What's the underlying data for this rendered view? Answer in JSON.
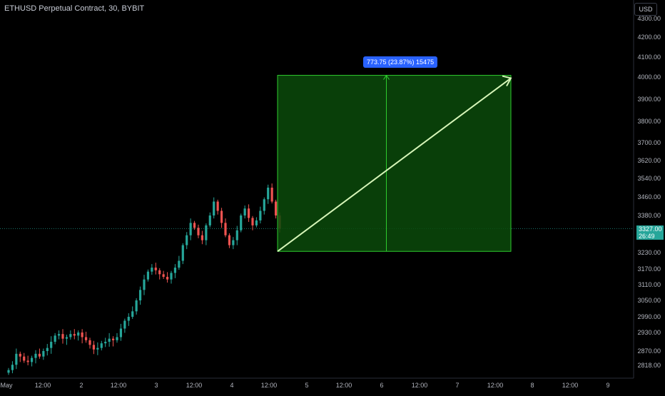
{
  "header": {
    "title": "ETHUSD Perpetual Contract, 30, BYBIT",
    "currency": "USD"
  },
  "last_price": {
    "value": "3327.00",
    "countdown": "26:49"
  },
  "measure": {
    "label": "773.75 (23.87%) 15475"
  },
  "colors": {
    "up": "#26a69a",
    "down": "#ef5350",
    "zone_fill": "#0a4a0a",
    "zone_border": "#2ecc2e",
    "arrow": "#d6f5b8",
    "badge": "#2962ff"
  },
  "chart_data": {
    "type": "candlestick",
    "title": "ETHUSD Perpetual Contract, 30, BYBIT",
    "price_ticks": [
      "4300.00",
      "4200.00",
      "4100.00",
      "4000.00",
      "3900.00",
      "3800.00",
      "3700.00",
      "3620.00",
      "3540.00",
      "3460.00",
      "3380.00",
      "3230.00",
      "3170.00",
      "3110.00",
      "3050.00",
      "2990.00",
      "2930.00",
      "2870.00",
      "2818.00"
    ],
    "time_ticks": [
      "May",
      "12:00",
      "2",
      "12:00",
      "3",
      "12:00",
      "4",
      "12:00",
      "5",
      "12:00",
      "6",
      "12:00",
      "7",
      "12:00",
      "8",
      "12:00",
      "9"
    ],
    "close_series": [
      2800,
      2820,
      2860,
      2850,
      2835,
      2830,
      2845,
      2860,
      2850,
      2870,
      2880,
      2900,
      2920,
      2925,
      2910,
      2915,
      2925,
      2920,
      2930,
      2915,
      2905,
      2890,
      2875,
      2880,
      2895,
      2900,
      2910,
      2905,
      2915,
      2945,
      2975,
      2990,
      3010,
      3050,
      3090,
      3130,
      3160,
      3175,
      3165,
      3150,
      3140,
      3130,
      3155,
      3175,
      3200,
      3260,
      3300,
      3350,
      3330,
      3300,
      3280,
      3340,
      3380,
      3440,
      3400,
      3350,
      3300,
      3260,
      3280,
      3320,
      3380,
      3410,
      3370,
      3340,
      3360,
      3400,
      3450,
      3500,
      3440,
      3380,
      3327
    ],
    "measure_tool": {
      "start_price": 3235.0,
      "end_price": 4008.75,
      "change": 773.75,
      "change_pct": 23.87,
      "bars": 15475
    }
  }
}
